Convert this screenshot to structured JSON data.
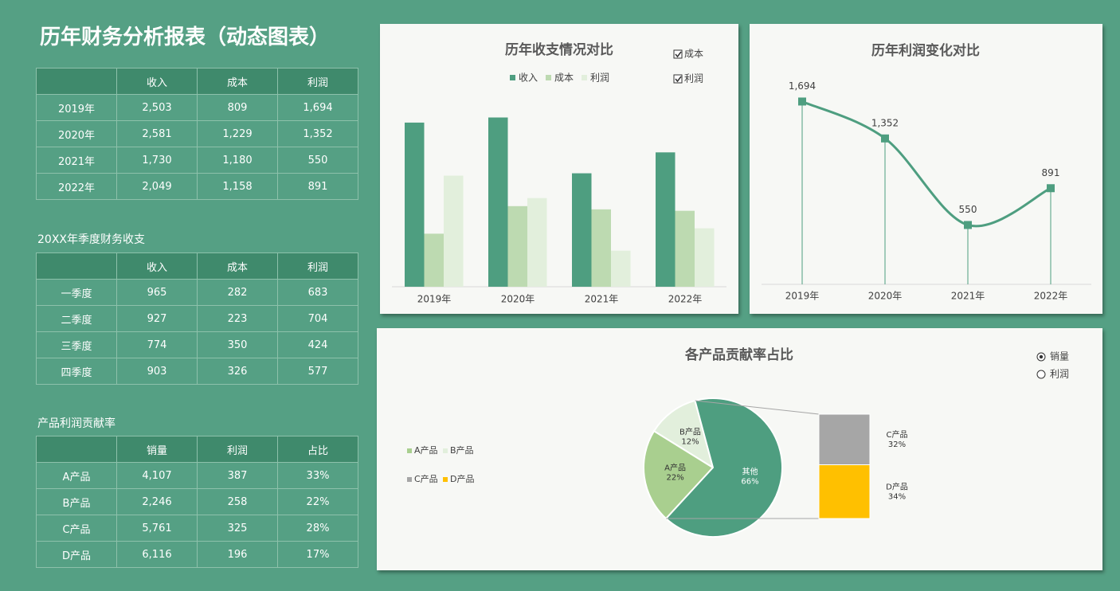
{
  "title": "历年财务分析报表（动态图表）",
  "table_1": {
    "header": [
      "收入",
      "成本",
      "利润"
    ],
    "rows": [
      [
        "2019年",
        "2,503",
        "809",
        "1,694"
      ],
      [
        "2020年",
        "2,581",
        "1,229",
        "1,352"
      ],
      [
        "2021年",
        "1,730",
        "1,180",
        "550"
      ],
      [
        "2022年",
        "2,049",
        "1,158",
        "891"
      ]
    ]
  },
  "table_2": {
    "title": "20XX年季度财务收支",
    "header": [
      "收入",
      "成本",
      "利润"
    ],
    "rows": [
      [
        "一季度",
        "965",
        "282",
        "683"
      ],
      [
        "二季度",
        "927",
        "223",
        "704"
      ],
      [
        "三季度",
        "774",
        "350",
        "424"
      ],
      [
        "四季度",
        "903",
        "326",
        "577"
      ]
    ]
  },
  "table_3": {
    "title": "产品利润贡献率",
    "header": [
      "销量",
      "利润",
      "占比"
    ],
    "rows": [
      [
        "A产品",
        "4,107",
        "387",
        "33%"
      ],
      [
        "B产品",
        "2,246",
        "258",
        "22%"
      ],
      [
        "C产品",
        "5,761",
        "325",
        "28%"
      ],
      [
        "D产品",
        "6,116",
        "196",
        "17%"
      ]
    ]
  },
  "chart_data": [
    {
      "type": "bar",
      "title": "历年收支情况对比",
      "categories": [
        "2019年",
        "2020年",
        "2021年",
        "2022年"
      ],
      "ylim": [
        0,
        3000
      ],
      "series": [
        {
          "name": "收入",
          "color": "#4e9e80",
          "values": [
            2503,
            2581,
            1730,
            2049
          ]
        },
        {
          "name": "成本",
          "color": "#bddab1",
          "values": [
            809,
            1229,
            1180,
            1158
          ]
        },
        {
          "name": "利润",
          "color": "#e2efdc",
          "values": [
            1694,
            1352,
            550,
            891
          ]
        }
      ],
      "controls": [
        {
          "label": "成本",
          "checked": true
        },
        {
          "label": "利润",
          "checked": true
        }
      ]
    },
    {
      "type": "line",
      "title": "历年利润变化对比",
      "categories": [
        "2019年",
        "2020年",
        "2021年",
        "2022年"
      ],
      "ylim": [
        0,
        2000
      ],
      "color": "#4e9e80",
      "values": [
        1694,
        1352,
        550,
        891
      ],
      "value_labels": [
        "1,694",
        "1,352",
        "550",
        "891"
      ]
    },
    {
      "type": "pie",
      "title": "各产品贡献率占比",
      "categories": [
        "A产品",
        "B产品",
        "其他"
      ],
      "values": [
        22,
        12,
        66
      ],
      "value_labels": [
        "22%",
        "12%",
        "66%"
      ],
      "colors": [
        "#a9cf8f",
        "#e2efdc",
        "#4e9e80"
      ],
      "secondary": {
        "categories": [
          "C产品",
          "D产品"
        ],
        "values": [
          32,
          34
        ],
        "value_labels": [
          "32%",
          "34%"
        ],
        "colors": [
          "#a6a6a6",
          "#ffc000"
        ]
      },
      "options": [
        {
          "label": "销量",
          "selected": true
        },
        {
          "label": "利润",
          "selected": false
        }
      ]
    }
  ]
}
